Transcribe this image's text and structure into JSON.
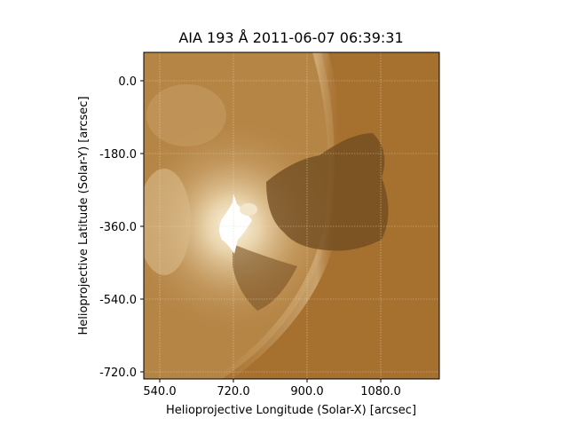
{
  "chart_data": {
    "type": "heatmap",
    "title": "AIA 193 Å 2011-06-07 06:39:31",
    "xlabel": "Helioprojective Longitude (Solar-X) [arcsec]",
    "ylabel": "Helioprojective Latitude (Solar-Y) [arcsec]",
    "xlim": [
      508,
      1240
    ],
    "ylim": [
      -735,
      70
    ],
    "x_ticks": [
      540.0,
      720.0,
      900.0,
      1080.0
    ],
    "x_tick_labels": [
      "540.0",
      "720.0",
      "900.0",
      "1080.0"
    ],
    "y_ticks": [
      0.0,
      -180.0,
      -360.0,
      -540.0,
      -720.0
    ],
    "y_tick_labels": [
      "0.0",
      "-180.0",
      "-360.0",
      "-540.0",
      "-720.0"
    ],
    "grid": true,
    "colormap": "sdoaia193",
    "colors": {
      "background": "#a6702f",
      "disk_mid": "#b98a4c",
      "bright": "#e6cfa4",
      "flare_core": "#ffffff",
      "dark_ejecta": "#6e4a1f",
      "grid": "#e8d8b8"
    }
  }
}
